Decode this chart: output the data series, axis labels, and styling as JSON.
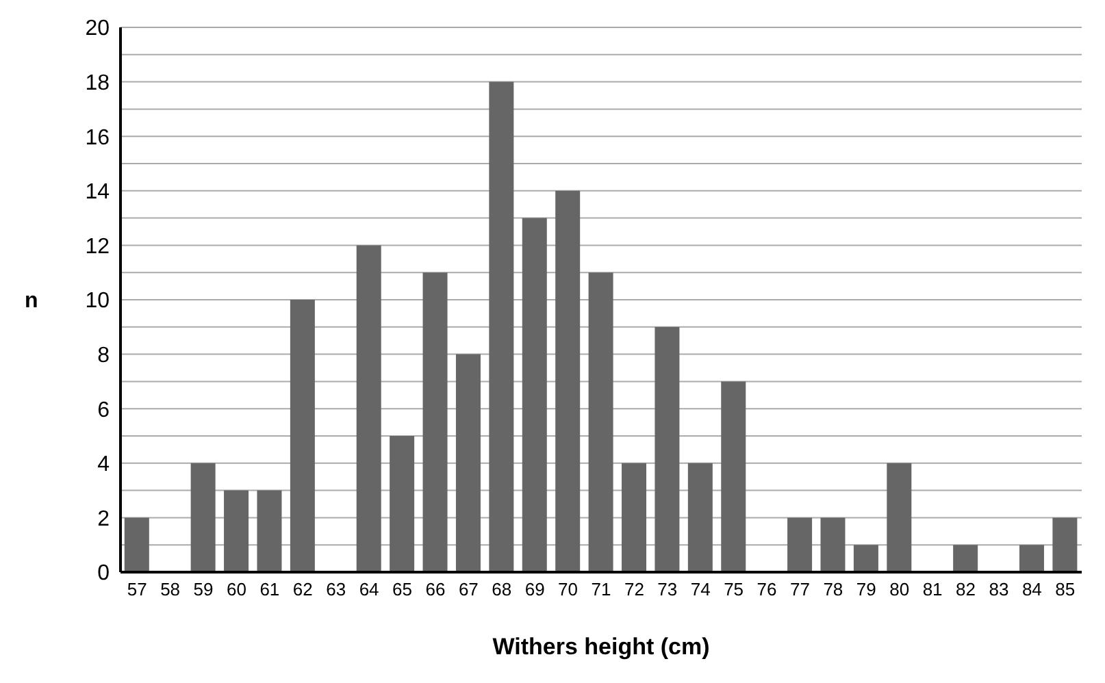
{
  "chart_data": {
    "type": "bar",
    "xlabel": "Withers height (cm)",
    "ylabel": "n",
    "categories": [
      "57",
      "58",
      "59",
      "60",
      "61",
      "62",
      "63",
      "64",
      "65",
      "66",
      "67",
      "68",
      "69",
      "70",
      "71",
      "72",
      "73",
      "74",
      "75",
      "76",
      "77",
      "78",
      "79",
      "80",
      "81",
      "82",
      "83",
      "84",
      "85"
    ],
    "values": [
      2,
      0,
      4,
      3,
      3,
      10,
      0,
      12,
      5,
      11,
      8,
      18,
      13,
      14,
      11,
      4,
      9,
      4,
      7,
      0,
      2,
      2,
      1,
      4,
      0,
      1,
      0,
      1,
      2
    ],
    "color": "#666666",
    "ylim": [
      0,
      20
    ],
    "yticks": [
      0,
      {
        "value": 1,
        "label": null
      },
      2,
      {
        "value": 3,
        "label": null
      },
      4,
      {
        "value": 5,
        "label": null
      },
      6,
      {
        "value": 7,
        "label": null
      },
      8,
      {
        "value": 9,
        "label": null
      },
      10,
      {
        "value": 11,
        "label": null
      },
      12,
      {
        "value": 13,
        "label": null
      },
      14,
      {
        "value": 15,
        "label": null
      },
      16,
      {
        "value": 17,
        "label": null
      },
      18,
      {
        "value": 19,
        "label": null
      },
      20
    ],
    "grid": "y"
  }
}
